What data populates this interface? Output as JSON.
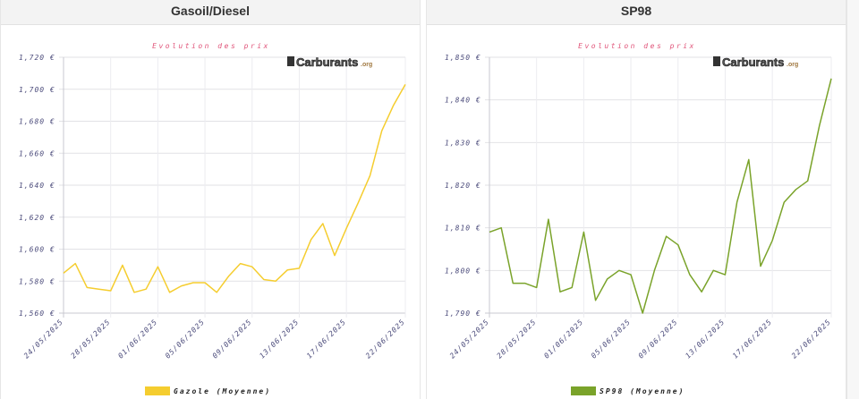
{
  "panels": [
    {
      "header": "Gasoil/Diesel"
    },
    {
      "header": "SP98"
    }
  ],
  "logo_text": "Carburants.org",
  "chart_data": [
    {
      "type": "line",
      "title": "Evolution des prix",
      "x": [
        "24/05/2025",
        "25/05/2025",
        "26/05/2025",
        "27/05/2025",
        "28/05/2025",
        "29/05/2025",
        "30/05/2025",
        "31/05/2025",
        "01/06/2025",
        "02/06/2025",
        "03/06/2025",
        "04/06/2025",
        "05/06/2025",
        "06/06/2025",
        "07/06/2025",
        "08/06/2025",
        "09/06/2025",
        "10/06/2025",
        "11/06/2025",
        "12/06/2025",
        "13/06/2025",
        "14/06/2025",
        "15/06/2025",
        "16/06/2025",
        "17/06/2025",
        "18/06/2025",
        "19/06/2025",
        "20/06/2025",
        "21/06/2025",
        "22/06/2025"
      ],
      "x_tick_labels": [
        "24/05/2025",
        "28/05/2025",
        "01/06/2025",
        "05/06/2025",
        "09/06/2025",
        "13/06/2025",
        "17/06/2025",
        "22/06/2025"
      ],
      "y_tick_labels": [
        "1,560 €",
        "1,580 €",
        "1,600 €",
        "1,620 €",
        "1,640 €",
        "1,660 €",
        "1,680 €",
        "1,700 €",
        "1,720 €"
      ],
      "ylim": [
        1.56,
        1.72
      ],
      "grid": true,
      "legend_position": "bottom",
      "color": "#f5cd2f",
      "series": [
        {
          "name": "Gazole (Moyenne)",
          "values": [
            1.585,
            1.591,
            1.576,
            1.575,
            1.574,
            1.59,
            1.573,
            1.575,
            1.589,
            1.573,
            1.577,
            1.579,
            1.579,
            1.573,
            1.583,
            1.591,
            1.589,
            1.581,
            1.58,
            1.587,
            1.588,
            1.606,
            1.616,
            1.596,
            1.613,
            1.629,
            1.646,
            1.674,
            1.69,
            1.703
          ]
        }
      ]
    },
    {
      "type": "line",
      "title": "Evolution des prix",
      "x": [
        "24/05/2025",
        "25/05/2025",
        "26/05/2025",
        "27/05/2025",
        "28/05/2025",
        "29/05/2025",
        "30/05/2025",
        "31/05/2025",
        "01/06/2025",
        "02/06/2025",
        "03/06/2025",
        "04/06/2025",
        "05/06/2025",
        "06/06/2025",
        "07/06/2025",
        "08/06/2025",
        "09/06/2025",
        "10/06/2025",
        "11/06/2025",
        "12/06/2025",
        "13/06/2025",
        "14/06/2025",
        "15/06/2025",
        "16/06/2025",
        "17/06/2025",
        "18/06/2025",
        "19/06/2025",
        "20/06/2025",
        "21/06/2025",
        "22/06/2025"
      ],
      "x_tick_labels": [
        "24/05/2025",
        "28/05/2025",
        "01/06/2025",
        "05/06/2025",
        "09/06/2025",
        "13/06/2025",
        "17/06/2025",
        "22/06/2025"
      ],
      "y_tick_labels": [
        "1,790 €",
        "1,800 €",
        "1,810 €",
        "1,820 €",
        "1,830 €",
        "1,840 €",
        "1,850 €"
      ],
      "ylim": [
        1.79,
        1.85
      ],
      "grid": true,
      "legend_position": "bottom",
      "color": "#7aa32a",
      "series": [
        {
          "name": "SP98 (Moyenne)",
          "values": [
            1.809,
            1.81,
            1.797,
            1.797,
            1.796,
            1.812,
            1.795,
            1.796,
            1.809,
            1.793,
            1.798,
            1.8,
            1.799,
            1.79,
            1.8,
            1.808,
            1.806,
            1.799,
            1.795,
            1.8,
            1.799,
            1.816,
            1.826,
            1.801,
            1.807,
            1.816,
            1.819,
            1.821,
            1.834,
            1.845
          ]
        }
      ]
    }
  ]
}
